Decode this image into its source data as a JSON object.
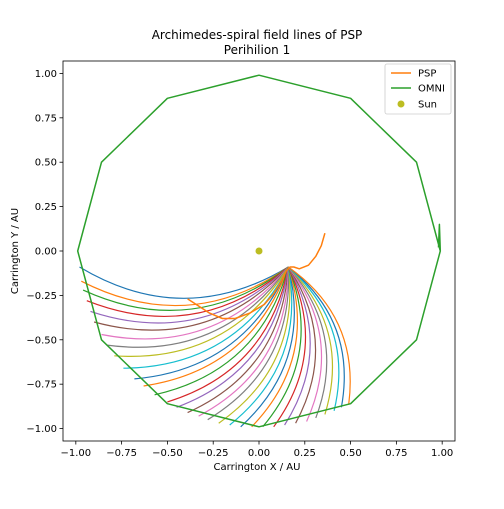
{
  "chart_data": {
    "type": "line",
    "title": "Archimedes-spiral field lines of PSP",
    "subtitle": "Perihilion 1",
    "xlabel": "Carrington X / AU",
    "ylabel": "Carrington Y / AU",
    "xlim": [
      -1.07,
      1.07
    ],
    "ylim": [
      -1.07,
      1.07
    ],
    "xticks": [
      -1.0,
      -0.75,
      -0.5,
      -0.25,
      0.0,
      0.25,
      0.5,
      0.75,
      1.0
    ],
    "yticks": [
      -1.0,
      -0.75,
      -0.5,
      -0.25,
      0.0,
      0.25,
      0.5,
      0.75,
      1.0
    ],
    "xtick_labels": [
      "−1.00",
      "−0.75",
      "−0.50",
      "−0.25",
      "0.00",
      "0.25",
      "0.50",
      "0.75",
      "1.00"
    ],
    "ytick_labels": [
      "−1.00",
      "−0.75",
      "−0.50",
      "−0.25",
      "0.00",
      "0.25",
      "0.50",
      "0.75",
      "1.00"
    ],
    "grid": false,
    "legend_position": "top-right",
    "series": [
      {
        "name": "PSP",
        "color": "#ff7f0e",
        "points": [
          [
            0.36,
            0.1
          ],
          [
            0.34,
            0.03
          ],
          [
            0.31,
            -0.03
          ],
          [
            0.27,
            -0.08
          ],
          [
            0.22,
            -0.1
          ],
          [
            0.19,
            -0.09
          ],
          [
            0.17,
            -0.09
          ],
          [
            0.15,
            -0.11
          ],
          [
            0.12,
            -0.17
          ],
          [
            0.08,
            -0.24
          ],
          [
            0.03,
            -0.3
          ],
          [
            -0.05,
            -0.35
          ],
          [
            -0.13,
            -0.38
          ],
          [
            -0.2,
            -0.38
          ],
          [
            -0.27,
            -0.35
          ],
          [
            -0.33,
            -0.31
          ],
          [
            -0.39,
            -0.27
          ]
        ]
      },
      {
        "name": "OMNI",
        "color": "#2ca02c",
        "points": [
          [
            0.99,
            0.0
          ],
          [
            0.86,
            0.5
          ],
          [
            0.5,
            0.86
          ],
          [
            0.0,
            0.99
          ],
          [
            -0.5,
            0.86
          ],
          [
            -0.86,
            0.5
          ],
          [
            -0.99,
            0.0
          ],
          [
            -0.86,
            -0.5
          ],
          [
            -0.5,
            -0.86
          ],
          [
            0.0,
            -0.99
          ],
          [
            0.5,
            -0.86
          ],
          [
            0.86,
            -0.5
          ],
          [
            0.99,
            0.0
          ],
          [
            0.985,
            0.15
          ],
          [
            0.98,
            0.02
          ]
        ]
      }
    ],
    "scatter": [
      {
        "name": "Sun",
        "color": "#bcbd22",
        "x": 0.0,
        "y": 0.0
      }
    ],
    "field_lines": {
      "palette": [
        "#1f77b4",
        "#ff7f0e",
        "#2ca02c",
        "#d62728",
        "#9467bd",
        "#8c564b",
        "#e377c2",
        "#7f7f7f",
        "#bcbd22",
        "#17becf"
      ],
      "lines": [
        {
          "start": [
            -0.98,
            -0.09
          ],
          "end": [
            0.16,
            -0.09
          ]
        },
        {
          "start": [
            -0.97,
            -0.17
          ],
          "end": [
            0.16,
            -0.09
          ]
        },
        {
          "start": [
            -0.96,
            -0.22
          ],
          "end": [
            0.16,
            -0.09
          ]
        },
        {
          "start": [
            -0.94,
            -0.28
          ],
          "end": [
            0.16,
            -0.09
          ]
        },
        {
          "start": [
            -0.92,
            -0.34
          ],
          "end": [
            0.16,
            -0.09
          ]
        },
        {
          "start": [
            -0.9,
            -0.4
          ],
          "end": [
            0.16,
            -0.09
          ]
        },
        {
          "start": [
            -0.86,
            -0.47
          ],
          "end": [
            0.16,
            -0.09
          ]
        },
        {
          "start": [
            -0.83,
            -0.53
          ],
          "end": [
            0.16,
            -0.09
          ]
        },
        {
          "start": [
            -0.79,
            -0.59
          ],
          "end": [
            0.16,
            -0.09
          ]
        },
        {
          "start": [
            -0.74,
            -0.66
          ],
          "end": [
            0.16,
            -0.09
          ]
        },
        {
          "start": [
            -0.68,
            -0.72
          ],
          "end": [
            0.16,
            -0.09
          ]
        },
        {
          "start": [
            -0.63,
            -0.76
          ],
          "end": [
            0.16,
            -0.09
          ]
        },
        {
          "start": [
            -0.57,
            -0.81
          ],
          "end": [
            0.16,
            -0.09
          ]
        },
        {
          "start": [
            -0.5,
            -0.85
          ],
          "end": [
            0.16,
            -0.09
          ]
        },
        {
          "start": [
            -0.45,
            -0.88
          ],
          "end": [
            0.16,
            -0.09
          ]
        },
        {
          "start": [
            -0.39,
            -0.91
          ],
          "end": [
            0.16,
            -0.09
          ]
        },
        {
          "start": [
            -0.33,
            -0.93
          ],
          "end": [
            0.16,
            -0.09
          ]
        },
        {
          "start": [
            -0.28,
            -0.95
          ],
          "end": [
            0.16,
            -0.09
          ]
        },
        {
          "start": [
            -0.22,
            -0.97
          ],
          "end": [
            0.16,
            -0.09
          ]
        },
        {
          "start": [
            -0.16,
            -0.98
          ],
          "end": [
            0.16,
            -0.09
          ]
        },
        {
          "start": [
            -0.1,
            -0.99
          ],
          "end": [
            0.16,
            -0.09
          ]
        },
        {
          "start": [
            -0.04,
            -0.99
          ],
          "end": [
            0.16,
            -0.09
          ]
        },
        {
          "start": [
            0.02,
            -0.99
          ],
          "end": [
            0.16,
            -0.09
          ]
        },
        {
          "start": [
            0.08,
            -0.99
          ],
          "end": [
            0.16,
            -0.09
          ]
        },
        {
          "start": [
            0.14,
            -0.98
          ],
          "end": [
            0.16,
            -0.09
          ]
        },
        {
          "start": [
            0.2,
            -0.97
          ],
          "end": [
            0.16,
            -0.09
          ]
        },
        {
          "start": [
            0.26,
            -0.96
          ],
          "end": [
            0.16,
            -0.09
          ]
        },
        {
          "start": [
            0.31,
            -0.94
          ],
          "end": [
            0.16,
            -0.09
          ]
        },
        {
          "start": [
            0.36,
            -0.92
          ],
          "end": [
            0.16,
            -0.09
          ]
        },
        {
          "start": [
            0.41,
            -0.9
          ],
          "end": [
            0.16,
            -0.09
          ]
        },
        {
          "start": [
            0.45,
            -0.88
          ],
          "end": [
            0.16,
            -0.09
          ]
        },
        {
          "start": [
            0.49,
            -0.86
          ],
          "end": [
            0.16,
            -0.09
          ]
        }
      ]
    }
  }
}
